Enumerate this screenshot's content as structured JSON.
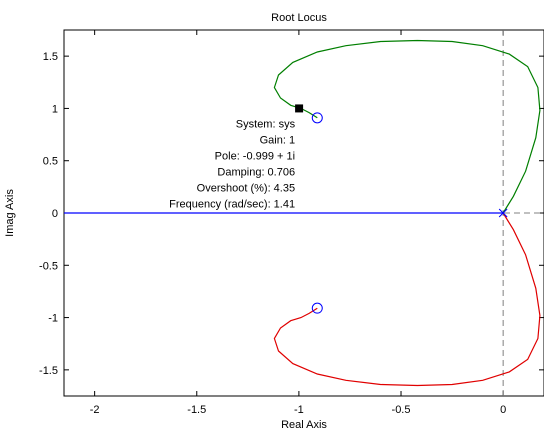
{
  "chart_data": {
    "type": "line",
    "title": "Root Locus",
    "xlabel": "Real Axis",
    "ylabel": "Imag Axis",
    "xlim": [
      -2.15,
      0.2
    ],
    "ylim": [
      -1.75,
      1.75
    ],
    "x_ticks": [
      -2,
      -1.5,
      -1,
      -0.5,
      0
    ],
    "y_ticks": [
      -1.5,
      -1,
      -0.5,
      0,
      0.5,
      1,
      1.5
    ],
    "x_tick_labels": [
      "-2",
      "-1.5",
      "-1",
      "-0.5",
      "0"
    ],
    "y_tick_labels": [
      "-1.5",
      "-1",
      "-0.5",
      "0",
      "0.5",
      "1",
      "1.5"
    ],
    "grid": false,
    "colors": {
      "upper_branch": "#007f00",
      "lower_branch": "#e00000",
      "real_axis": "#0000ff",
      "zeros": "#0000ff"
    },
    "poles": [
      {
        "re": 0,
        "im": 0
      }
    ],
    "zeros": [
      {
        "re": -0.91,
        "im": 0.91
      },
      {
        "re": -0.91,
        "im": -0.91
      }
    ],
    "series": [
      {
        "color": "#007f00",
        "x": [
          0,
          0.05,
          0.11,
          0.16,
          0.18,
          0.17,
          0.12,
          0.03,
          -0.1,
          -0.25,
          -0.42,
          -0.6,
          -0.77,
          -0.91,
          -1.03,
          -1.1,
          -1.12,
          -1.09,
          -1.04,
          -0.99,
          -0.95,
          -0.91
        ],
        "y": [
          0,
          0.16,
          0.4,
          0.72,
          0.98,
          1.2,
          1.4,
          1.52,
          1.6,
          1.64,
          1.65,
          1.64,
          1.6,
          1.54,
          1.44,
          1.32,
          1.2,
          1.1,
          1.03,
          1.0,
          0.96,
          0.91
        ]
      },
      {
        "color": "#e00000",
        "x": [
          0,
          0.05,
          0.11,
          0.16,
          0.18,
          0.17,
          0.12,
          0.03,
          -0.1,
          -0.25,
          -0.42,
          -0.6,
          -0.77,
          -0.91,
          -1.03,
          -1.1,
          -1.12,
          -1.09,
          -1.04,
          -0.99,
          -0.95,
          -0.91
        ],
        "y": [
          0,
          -0.16,
          -0.4,
          -0.72,
          -0.98,
          -1.2,
          -1.4,
          -1.52,
          -1.6,
          -1.64,
          -1.65,
          -1.64,
          -1.6,
          -1.54,
          -1.44,
          -1.32,
          -1.2,
          -1.1,
          -1.03,
          -1.0,
          -0.96,
          -0.91
        ]
      },
      {
        "color": "#0000ff",
        "x": [
          -2.15,
          0
        ],
        "y": [
          0,
          0
        ]
      }
    ],
    "datatip": {
      "marker": {
        "re": -0.999,
        "im": 1.0
      },
      "lines": [
        "System: sys",
        "Gain: 1",
        "Pole: -0.999 + 1i",
        "Damping: 0.706",
        "Overshoot (%): 4.35",
        "Frequency (rad/sec): 1.41"
      ]
    }
  }
}
